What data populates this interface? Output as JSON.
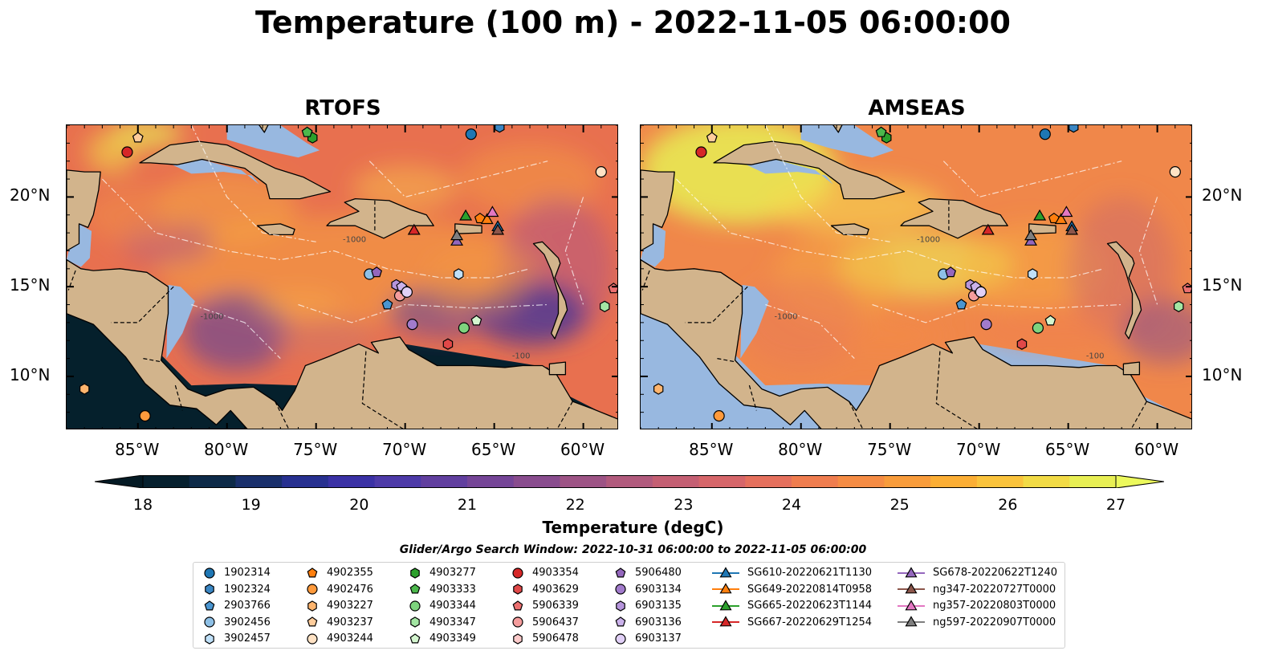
{
  "title": "Temperature (100 m) - 2022-11-05 06:00:00",
  "panels": [
    {
      "title": "RTOFS"
    },
    {
      "title": "AMSEAS"
    }
  ],
  "colorbar": {
    "label": "Temperature (degC)",
    "ticks": [
      "18",
      "19",
      "20",
      "21",
      "22",
      "23",
      "24",
      "25",
      "26",
      "27"
    ],
    "colors": [
      "#06202e",
      "#0d2a48",
      "#192f6b",
      "#273090",
      "#3a31a5",
      "#4d3aa8",
      "#613f9f",
      "#754597",
      "#894c8e",
      "#9d5385",
      "#b15a7d",
      "#c45f73",
      "#d6666a",
      "#e5705d",
      "#ef7d4f",
      "#f58c44",
      "#f89c3b",
      "#fbae35",
      "#fac33c",
      "#f2db46",
      "#e8ef54"
    ],
    "under_color": "#041a24",
    "over_color": "#ecf95c"
  },
  "search_window": "Glider/Argo Search Window: 2022-10-31 06:00:00 to 2022-11-05 06:00:00",
  "legend": [
    {
      "label": "1902314",
      "marker": "circle",
      "color": "#1f77b4"
    },
    {
      "label": "1902324",
      "marker": "hexagon",
      "color": "#3a86c3"
    },
    {
      "label": "2903766",
      "marker": "pentagon",
      "color": "#4a95d0"
    },
    {
      "label": "3902456",
      "marker": "circle",
      "color": "#8ec0e6"
    },
    {
      "label": "3902457",
      "marker": "hexagon",
      "color": "#bfe0f8"
    },
    {
      "label": "4902355",
      "marker": "pentagon",
      "color": "#ff7f0e"
    },
    {
      "label": "4902476",
      "marker": "circle",
      "color": "#ff9a3c"
    },
    {
      "label": "4903227",
      "marker": "hexagon",
      "color": "#ffb56e"
    },
    {
      "label": "4903237",
      "marker": "pentagon",
      "color": "#ffcd9c"
    },
    {
      "label": "4903244",
      "marker": "circle",
      "color": "#ffe2c4"
    },
    {
      "label": "4903277",
      "marker": "hexagon",
      "color": "#2ca02c"
    },
    {
      "label": "4903333",
      "marker": "pentagon",
      "color": "#4cb84c"
    },
    {
      "label": "4903344",
      "marker": "circle",
      "color": "#7ed37e"
    },
    {
      "label": "4903347",
      "marker": "hexagon",
      "color": "#a3e6a3"
    },
    {
      "label": "4903349",
      "marker": "pentagon",
      "color": "#d4f6cf"
    },
    {
      "label": "4903354",
      "marker": "circle",
      "color": "#d62728"
    },
    {
      "label": "4903629",
      "marker": "hexagon",
      "color": "#e04848"
    },
    {
      "label": "5906339",
      "marker": "pentagon",
      "color": "#ec7070"
    },
    {
      "label": "5906437",
      "marker": "circle",
      "color": "#f59d9d"
    },
    {
      "label": "5906478",
      "marker": "hexagon",
      "color": "#fccaca"
    },
    {
      "label": "5906480",
      "marker": "pentagon",
      "color": "#9467bd"
    },
    {
      "label": "6903134",
      "marker": "circle",
      "color": "#a27bcc"
    },
    {
      "label": "6903135",
      "marker": "hexagon",
      "color": "#b695dc"
    },
    {
      "label": "6903136",
      "marker": "pentagon",
      "color": "#cbb2eb"
    },
    {
      "label": "6903137",
      "marker": "circle",
      "color": "#e1d0f7"
    },
    {
      "label": "SG610-20220621T1130",
      "marker": "triangle-line",
      "color": "#1f77b4"
    },
    {
      "label": "SG649-20220814T0958",
      "marker": "triangle-line",
      "color": "#ff7f0e"
    },
    {
      "label": "SG665-20220623T1144",
      "marker": "triangle-line",
      "color": "#2ca02c"
    },
    {
      "label": "SG667-20220629T1254",
      "marker": "triangle-line",
      "color": "#d62728"
    },
    {
      "label": "SG678-20220622T1240",
      "marker": "triangle-line",
      "color": "#9467bd"
    },
    {
      "label": "ng347-20220727T0000",
      "marker": "triangle-line",
      "color": "#8c564b"
    },
    {
      "label": "ng357-20220803T0000",
      "marker": "triangle-line",
      "color": "#e377c2"
    },
    {
      "label": "ng597-20220907T0000",
      "marker": "triangle-line",
      "color": "#7f7f7f"
    }
  ],
  "chart_data": {
    "type": "heatmap",
    "title": "Temperature (100 m) - 2022-11-05 06:00:00",
    "panels": [
      "RTOFS",
      "AMSEAS"
    ],
    "xlim": [
      -89,
      -58
    ],
    "ylim": [
      7,
      24
    ],
    "x_ticks": [
      -85,
      -80,
      -75,
      -70,
      -65,
      -60
    ],
    "x_tick_labels": [
      "85°W",
      "80°W",
      "75°W",
      "70°W",
      "65°W",
      "60°W"
    ],
    "y_ticks": [
      10,
      15,
      20
    ],
    "y_tick_labels": [
      "10°N",
      "15°N",
      "20°N"
    ],
    "clim": [
      18,
      27
    ],
    "colorbar_extend": "both",
    "contour_labels": [
      "-100",
      "-1000"
    ],
    "colors": {
      "land": "#d2b48c",
      "ocean_mask": "#98b8e0"
    },
    "argo_floats": [
      {
        "id": "1902314",
        "lon": -66.3,
        "lat": 23.5
      },
      {
        "id": "1902324",
        "lon": -64.7,
        "lat": 23.9
      },
      {
        "id": "2903766",
        "lon": -71.0,
        "lat": 14.0
      },
      {
        "id": "3902456",
        "lon": -72.0,
        "lat": 15.7
      },
      {
        "id": "3902457",
        "lon": -67.0,
        "lat": 15.7
      },
      {
        "id": "4902355",
        "lon": -65.8,
        "lat": 18.8
      },
      {
        "id": "4902476",
        "lon": -84.6,
        "lat": 7.8
      },
      {
        "id": "4903227",
        "lon": -88.0,
        "lat": 9.3
      },
      {
        "id": "4903237",
        "lon": -85.0,
        "lat": 23.3
      },
      {
        "id": "4903244",
        "lon": -59.0,
        "lat": 21.4
      },
      {
        "id": "4903277",
        "lon": -75.2,
        "lat": 23.3
      },
      {
        "id": "4903333",
        "lon": -75.5,
        "lat": 23.6
      },
      {
        "id": "4903344",
        "lon": -66.7,
        "lat": 12.7
      },
      {
        "id": "4903347",
        "lon": -58.8,
        "lat": 13.9
      },
      {
        "id": "4903349",
        "lon": -66.0,
        "lat": 13.1
      },
      {
        "id": "4903354",
        "lon": -85.6,
        "lat": 22.5
      },
      {
        "id": "4903629",
        "lon": -67.6,
        "lat": 11.8
      },
      {
        "id": "5906339",
        "lon": -58.3,
        "lat": 14.9
      },
      {
        "id": "5906437",
        "lon": -70.3,
        "lat": 14.5
      },
      {
        "id": "5906478",
        "lon": -70.0,
        "lat": 14.8
      },
      {
        "id": "5906480",
        "lon": -71.6,
        "lat": 15.8
      },
      {
        "id": "6903134",
        "lon": -69.6,
        "lat": 12.9
      },
      {
        "id": "6903135",
        "lon": -70.5,
        "lat": 15.1
      },
      {
        "id": "6903136",
        "lon": -70.2,
        "lat": 15.0
      },
      {
        "id": "6903137",
        "lon": -69.9,
        "lat": 14.7
      }
    ],
    "gliders": [
      {
        "id": "SG610-20220621T1130",
        "lon": -64.8,
        "lat": 18.3
      },
      {
        "id": "SG649-20220814T0958",
        "lon": -65.4,
        "lat": 18.7
      },
      {
        "id": "SG665-20220623T1144",
        "lon": -66.6,
        "lat": 18.9
      },
      {
        "id": "SG667-20220629T1254",
        "lon": -69.5,
        "lat": 18.1
      },
      {
        "id": "SG678-20220622T1240",
        "lon": -67.1,
        "lat": 17.5
      },
      {
        "id": "ng347-20220727T0000",
        "lon": -64.8,
        "lat": 18.1
      },
      {
        "id": "ng357-20220803T0000",
        "lon": -65.1,
        "lat": 19.1
      },
      {
        "id": "ng597-20220907T0000",
        "lon": -67.1,
        "lat": 17.8
      }
    ]
  }
}
